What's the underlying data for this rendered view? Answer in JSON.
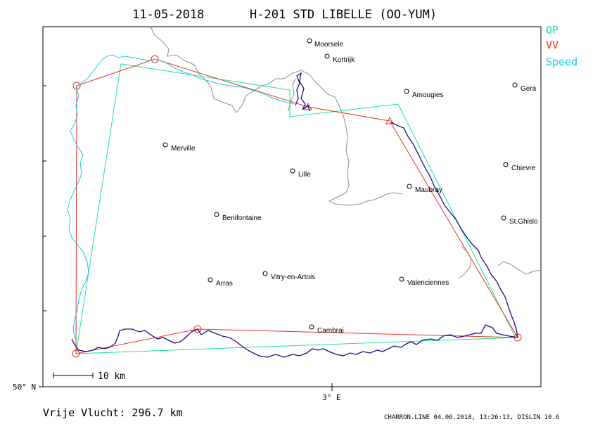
{
  "title": {
    "date": "11-05-2018",
    "glider": "H-201 STD LIBELLE (OO-YUM)"
  },
  "legend": [
    {
      "label": "OP",
      "color": "#19e3a0"
    },
    {
      "label": "VV",
      "color": "#e8321e"
    },
    {
      "label": "Speed",
      "color": "#19c8e8"
    }
  ],
  "cities": [
    {
      "name": "Moorsele"
    },
    {
      "name": "Kortrijk"
    },
    {
      "name": "Amougies"
    },
    {
      "name": "Gera"
    },
    {
      "name": "Merville"
    },
    {
      "name": "Lille"
    },
    {
      "name": "Chievre"
    },
    {
      "name": "Maubray"
    },
    {
      "name": "Benifontaine"
    },
    {
      "name": "St.Ghislo"
    },
    {
      "name": "Arras"
    },
    {
      "name": "Vitry-en-Artois"
    },
    {
      "name": "Valenciennes"
    },
    {
      "name": "Cambrai"
    }
  ],
  "scale_bar": {
    "label": "10 km"
  },
  "axes": {
    "lat_label": "50° N",
    "lon_label": "3° E"
  },
  "footer": {
    "distance": "Vrije Vlucht:  296.7 km",
    "credit": "CHARRON.LINE 04.06.2018, 13:26:13, DISLIN 10.6"
  },
  "colors": {
    "track": "#1e0a8c",
    "track_light": "#19c8e8",
    "border": "#8c8c8c"
  }
}
